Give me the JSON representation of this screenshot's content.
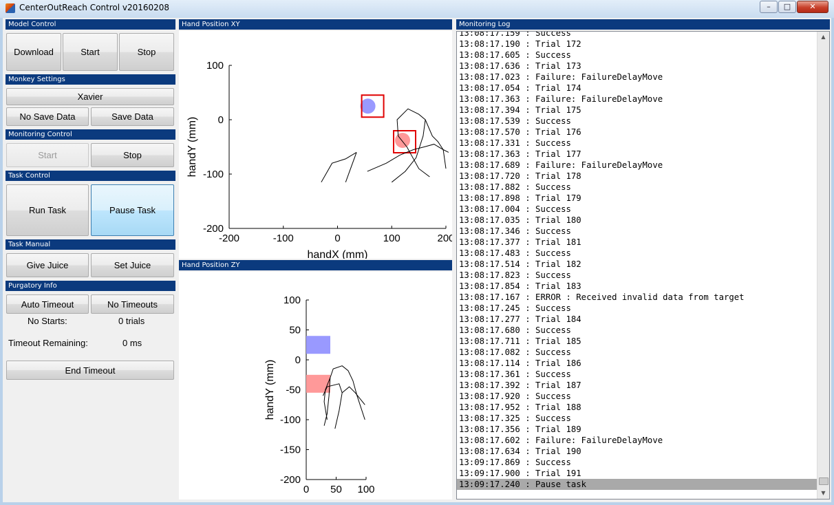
{
  "window": {
    "title": "CenterOutReach Control v20160208",
    "min_glyph": "–",
    "max_glyph": "□",
    "close_glyph": "✕"
  },
  "panels": {
    "model_control": {
      "title": "Model Control",
      "download": "Download",
      "start": "Start",
      "stop": "Stop"
    },
    "monkey_settings": {
      "title": "Monkey Settings",
      "monkey": "Xavier",
      "no_save": "No Save Data",
      "save": "Save Data"
    },
    "monitoring_control": {
      "title": "Monitoring Control",
      "start": "Start",
      "stop": "Stop"
    },
    "task_control": {
      "title": "Task Control",
      "run": "Run Task",
      "pause": "Pause Task"
    },
    "task_manual": {
      "title": "Task Manual",
      "give_juice": "Give Juice",
      "set_juice": "Set Juice"
    },
    "purgatory_info": {
      "title": "Purgatory Info",
      "auto_timeout": "Auto Timeout",
      "no_timeouts": "No Timeouts",
      "no_starts_label": "No Starts:",
      "no_starts_value": "0 trials",
      "timeout_remaining_label": "Timeout Remaining:",
      "timeout_remaining_value": "0 ms",
      "end_timeout": "End Timeout"
    }
  },
  "plot_xy": {
    "panel_title": "Hand Position XY",
    "xlabel": "handX (mm)",
    "ylabel": "handY (mm)",
    "x_ticks": [
      "-200",
      "-100",
      "0",
      "100",
      "200"
    ],
    "y_ticks": [
      "100",
      "0",
      "-100",
      "-200"
    ],
    "xlim": [
      -200,
      200
    ],
    "ylim": [
      -200,
      100
    ],
    "target_a": {
      "x": 56,
      "y": 25,
      "color": "#9999ff"
    },
    "target_b": {
      "x": 120,
      "y": -38,
      "color": "#ff9999"
    },
    "box_color": "#e00000",
    "trace": [
      [
        [
          -30,
          -115
        ],
        [
          -10,
          -80
        ],
        [
          15,
          -72
        ],
        [
          35,
          -60
        ]
      ],
      [
        [
          35,
          -60
        ],
        [
          15,
          -115
        ]
      ],
      [
        [
          55,
          -95
        ],
        [
          90,
          -80
        ],
        [
          115,
          -65
        ],
        [
          140,
          -55
        ],
        [
          160,
          -50
        ],
        [
          178,
          -45
        ],
        [
          195,
          -55
        ],
        [
          205,
          -60
        ]
      ],
      [
        [
          100,
          -115
        ],
        [
          125,
          -95
        ],
        [
          145,
          -70
        ],
        [
          158,
          -30
        ],
        [
          162,
          0
        ],
        [
          150,
          10
        ],
        [
          130,
          20
        ],
        [
          110,
          0
        ],
        [
          112,
          -30
        ],
        [
          128,
          -50
        ],
        [
          150,
          -90
        ],
        [
          170,
          -105
        ]
      ],
      [
        [
          162,
          0
        ],
        [
          175,
          -30
        ],
        [
          185,
          -40
        ],
        [
          195,
          -55
        ],
        [
          200,
          -90
        ]
      ]
    ]
  },
  "plot_zy": {
    "panel_title": "Hand Position ZY",
    "xlabel": "handZ (mm)",
    "ylabel": "handY (mm)",
    "x_ticks": [
      "0",
      "50",
      "100"
    ],
    "y_ticks": [
      "100",
      "50",
      "0",
      "-50",
      "-100",
      "-150",
      "-200"
    ],
    "xlim": [
      0,
      100
    ],
    "ylim": [
      -200,
      100
    ],
    "target_a": {
      "x": 20,
      "y": 25,
      "color": "#9999ff"
    },
    "target_b": {
      "x": 20,
      "y": -40,
      "color": "#ff9999"
    },
    "trace": [
      [
        [
          30,
          -110
        ],
        [
          35,
          -90
        ],
        [
          38,
          -60
        ],
        [
          40,
          -30
        ],
        [
          45,
          -15
        ],
        [
          60,
          -10
        ],
        [
          70,
          -18
        ],
        [
          78,
          -35
        ],
        [
          85,
          -60
        ],
        [
          98,
          -100
        ]
      ],
      [
        [
          40,
          -30
        ],
        [
          32,
          -50
        ],
        [
          30,
          -70
        ],
        [
          35,
          -100
        ]
      ],
      [
        [
          48,
          -115
        ],
        [
          55,
          -85
        ],
        [
          60,
          -55
        ],
        [
          72,
          -45
        ],
        [
          82,
          -55
        ],
        [
          98,
          -75
        ]
      ],
      [
        [
          60,
          -55
        ],
        [
          55,
          -40
        ],
        [
          35,
          -45
        ],
        [
          28,
          -60
        ]
      ]
    ]
  },
  "log": {
    "title": "Monitoring Log",
    "lines": [
      "13:08:17.159 : Success",
      "13:08:17.190 : Trial 172",
      "13:08:17.605 : Success",
      "13:08:17.636 : Trial 173",
      "13:08:17.023 : Failure: FailureDelayMove",
      "13:08:17.054 : Trial 174",
      "13:08:17.363 : Failure: FailureDelayMove",
      "13:08:17.394 : Trial 175",
      "13:08:17.539 : Success",
      "13:08:17.570 : Trial 176",
      "13:08:17.331 : Success",
      "13:08:17.363 : Trial 177",
      "13:08:17.689 : Failure: FailureDelayMove",
      "13:08:17.720 : Trial 178",
      "13:08:17.882 : Success",
      "13:08:17.898 : Trial 179",
      "13:08:17.004 : Success",
      "13:08:17.035 : Trial 180",
      "13:08:17.346 : Success",
      "13:08:17.377 : Trial 181",
      "13:08:17.483 : Success",
      "13:08:17.514 : Trial 182",
      "13:08:17.823 : Success",
      "13:08:17.854 : Trial 183",
      "13:08:17.167 : ERROR : Received invalid data from target",
      "13:08:17.245 : Success",
      "13:08:17.277 : Trial 184",
      "13:08:17.680 : Success",
      "13:08:17.711 : Trial 185",
      "13:08:17.082 : Success",
      "13:08:17.114 : Trial 186",
      "13:08:17.361 : Success",
      "13:08:17.392 : Trial 187",
      "13:08:17.920 : Success",
      "13:08:17.952 : Trial 188",
      "13:08:17.325 : Success",
      "13:08:17.356 : Trial 189",
      "13:08:17.602 : Failure: FailureDelayMove",
      "13:08:17.634 : Trial 190",
      "13:09:17.869 : Success",
      "13:09:17.900 : Trial 191",
      "13:09:17.240 : Pause task"
    ],
    "selected_index": 41
  }
}
